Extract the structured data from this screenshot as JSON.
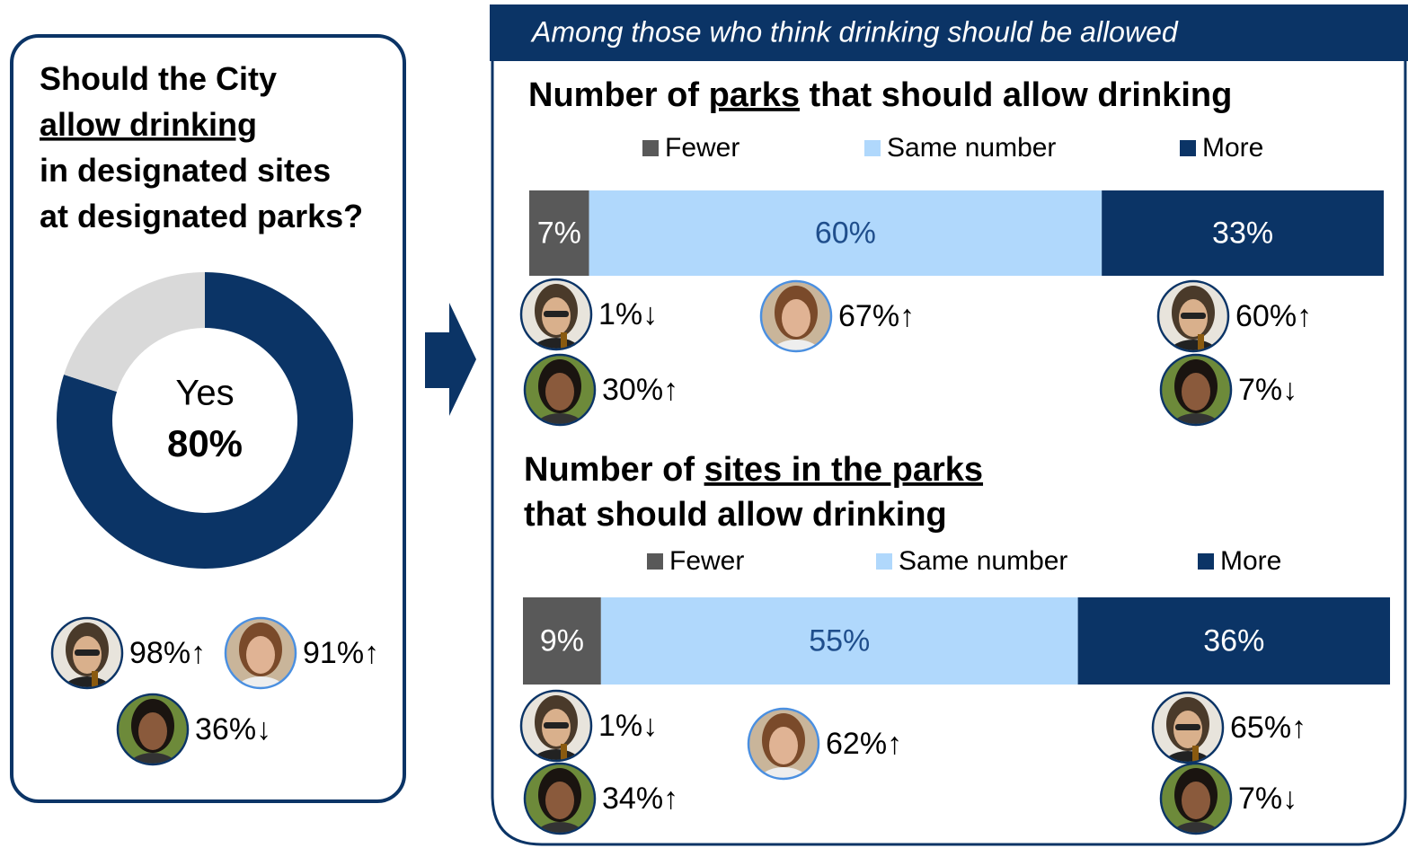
{
  "banner": "Among those who think drinking should be allowed",
  "chart_data": [
    {
      "type": "pie",
      "donut": true,
      "title_lines": [
        [
          "Should the City"
        ],
        [
          {
            "text": "allow drinking",
            "underline": true
          }
        ],
        [
          "in designated sites"
        ],
        [
          "at designated parks?"
        ]
      ],
      "categories": [
        "Yes",
        null
      ],
      "values": [
        80,
        20
      ],
      "value_labels": [
        "80%",
        null
      ],
      "colors": [
        "#0b3466",
        "#d9d9d9"
      ],
      "annotations": [
        "98%↑",
        "91%↑",
        "36%↓"
      ]
    },
    {
      "type": "bar",
      "orientation": "horizontal",
      "stacked": true,
      "title_lines": [
        [
          "Number of ",
          {
            "text": "parks",
            "underline": true
          },
          " that should allow drinking"
        ]
      ],
      "series": [
        {
          "name": "Fewer",
          "color": "#595959",
          "values": [
            7
          ],
          "value_labels": [
            "7%"
          ]
        },
        {
          "name": "Same number",
          "color": "#b0d8fc",
          "values": [
            60
          ],
          "value_labels": [
            "60%"
          ]
        },
        {
          "name": "More",
          "color": "#0b3466",
          "values": [
            33
          ],
          "value_labels": [
            "33%"
          ]
        }
      ],
      "annotations": [
        "1%↓",
        "30%↑",
        "67%↑",
        "60%↑",
        "7%↓"
      ]
    },
    {
      "type": "bar",
      "orientation": "horizontal",
      "stacked": true,
      "title_lines": [
        [
          "Number of ",
          {
            "text": "sites in the parks",
            "underline": true
          }
        ],
        [
          "that should allow drinking"
        ]
      ],
      "series": [
        {
          "name": "Fewer",
          "color": "#595959",
          "values": [
            9
          ],
          "value_labels": [
            "9%"
          ]
        },
        {
          "name": "Same number",
          "color": "#b0d8fc",
          "values": [
            55
          ],
          "value_labels": [
            "55%"
          ]
        },
        {
          "name": "More",
          "color": "#0b3466",
          "values": [
            36
          ],
          "value_labels": [
            "36%"
          ]
        }
      ],
      "annotations": [
        "1%↓",
        "34%↑",
        "62%↑",
        "65%↑",
        "7%↓"
      ]
    }
  ]
}
